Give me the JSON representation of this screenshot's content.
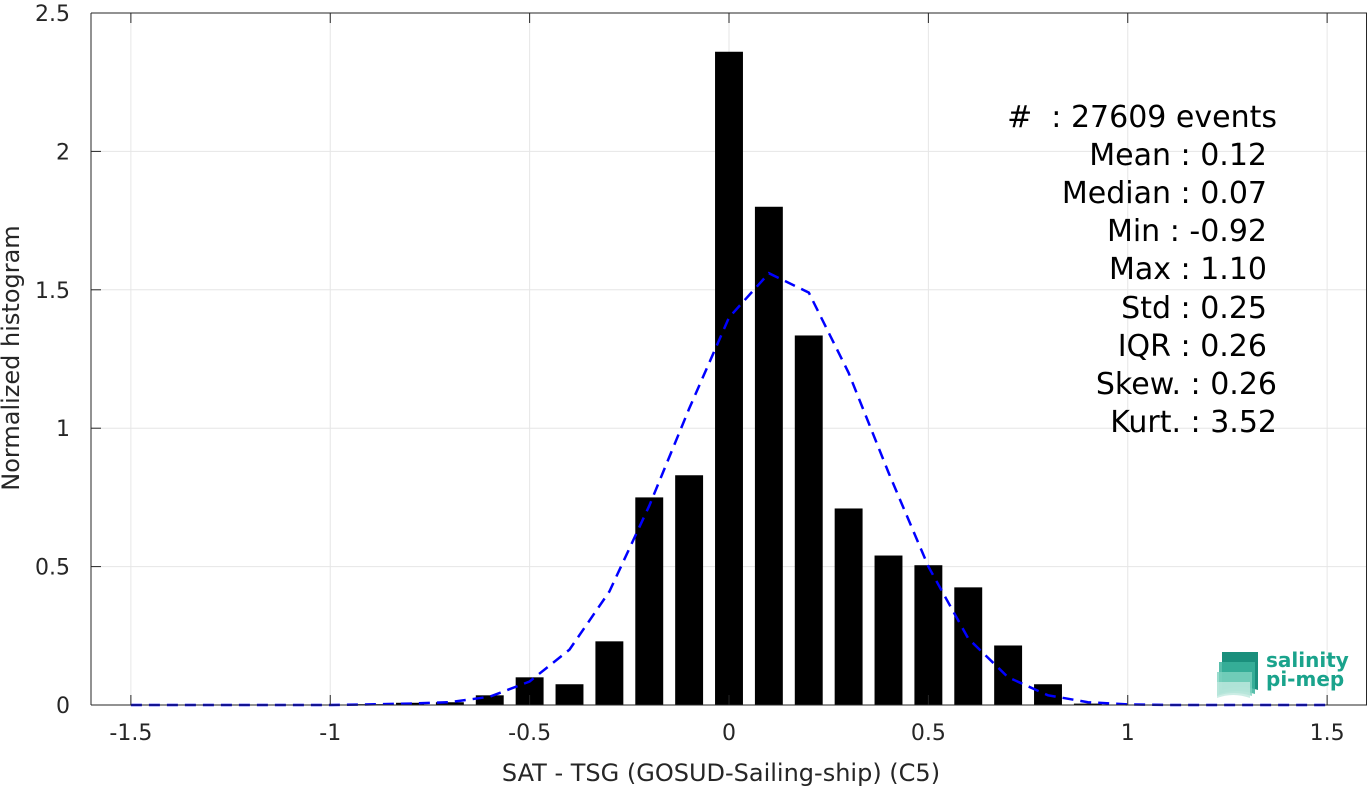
{
  "chart_data": {
    "type": "bar",
    "xlabel": "SAT - TSG (GOSUD-Sailing-ship) (C5)",
    "ylabel": "Normalized histogram",
    "xlim": [
      -1.6,
      1.6
    ],
    "ylim": [
      0,
      2.5
    ],
    "xticks": [
      -1.5,
      -1,
      -0.5,
      0,
      0.5,
      1,
      1.5
    ],
    "xtick_labels": [
      "-1.5",
      "-1",
      "-0.5",
      "0",
      "0.5",
      "1",
      "1.5"
    ],
    "yticks": [
      0,
      0.5,
      1,
      1.5,
      2,
      2.5
    ],
    "ytick_labels": [
      "0",
      "0.5",
      "1",
      "1.5",
      "2",
      "2.5"
    ],
    "grid": true,
    "bar_width": 0.07,
    "bins": [
      {
        "x": -0.9,
        "value": 0.003
      },
      {
        "x": -0.8,
        "value": 0.008
      },
      {
        "x": -0.7,
        "value": 0.01
      },
      {
        "x": -0.6,
        "value": 0.035
      },
      {
        "x": -0.5,
        "value": 0.1
      },
      {
        "x": -0.4,
        "value": 0.075
      },
      {
        "x": -0.3,
        "value": 0.23
      },
      {
        "x": -0.2,
        "value": 0.75
      },
      {
        "x": -0.1,
        "value": 0.83
      },
      {
        "x": 0.0,
        "value": 2.36
      },
      {
        "x": 0.1,
        "value": 1.8
      },
      {
        "x": 0.2,
        "value": 1.335
      },
      {
        "x": 0.3,
        "value": 0.71
      },
      {
        "x": 0.4,
        "value": 0.54
      },
      {
        "x": 0.5,
        "value": 0.505
      },
      {
        "x": 0.6,
        "value": 0.425
      },
      {
        "x": 0.7,
        "value": 0.215
      },
      {
        "x": 0.8,
        "value": 0.075
      },
      {
        "x": 0.9,
        "value": 0.005
      }
    ],
    "fit_curve": {
      "color": "#0000ff",
      "style": "dashed",
      "points": [
        [
          -1.5,
          0.0
        ],
        [
          -1.2,
          0.0
        ],
        [
          -1.0,
          0.0
        ],
        [
          -0.9,
          0.002
        ],
        [
          -0.8,
          0.005
        ],
        [
          -0.7,
          0.01
        ],
        [
          -0.6,
          0.03
        ],
        [
          -0.5,
          0.085
        ],
        [
          -0.4,
          0.2
        ],
        [
          -0.3,
          0.41
        ],
        [
          -0.2,
          0.72
        ],
        [
          -0.1,
          1.07
        ],
        [
          0.0,
          1.4
        ],
        [
          0.1,
          1.56
        ],
        [
          0.2,
          1.49
        ],
        [
          0.3,
          1.2
        ],
        [
          0.4,
          0.84
        ],
        [
          0.5,
          0.5
        ],
        [
          0.6,
          0.24
        ],
        [
          0.7,
          0.1
        ],
        [
          0.8,
          0.035
        ],
        [
          0.9,
          0.01
        ],
        [
          1.0,
          0.002
        ],
        [
          1.1,
          0.0
        ],
        [
          1.3,
          0.0
        ],
        [
          1.5,
          0.0
        ]
      ]
    }
  },
  "stats": {
    "events": "#  : 27609 events",
    "mean": "Mean : 0.12",
    "median": "Median : 0.07",
    "min": "Min : -0.92",
    "max": "Max : 1.10",
    "std": "Std : 0.25",
    "iqr": "IQR : 0.26",
    "skew": "Skew. : 0.26",
    "kurt": "Kurt. : 3.52"
  },
  "logo": {
    "line1": "salinity",
    "line2": "pi-mep",
    "color": "#1aa38c"
  },
  "colors": {
    "bar": "#000000",
    "grid": "#e6e6e6",
    "axis": "#262626"
  }
}
